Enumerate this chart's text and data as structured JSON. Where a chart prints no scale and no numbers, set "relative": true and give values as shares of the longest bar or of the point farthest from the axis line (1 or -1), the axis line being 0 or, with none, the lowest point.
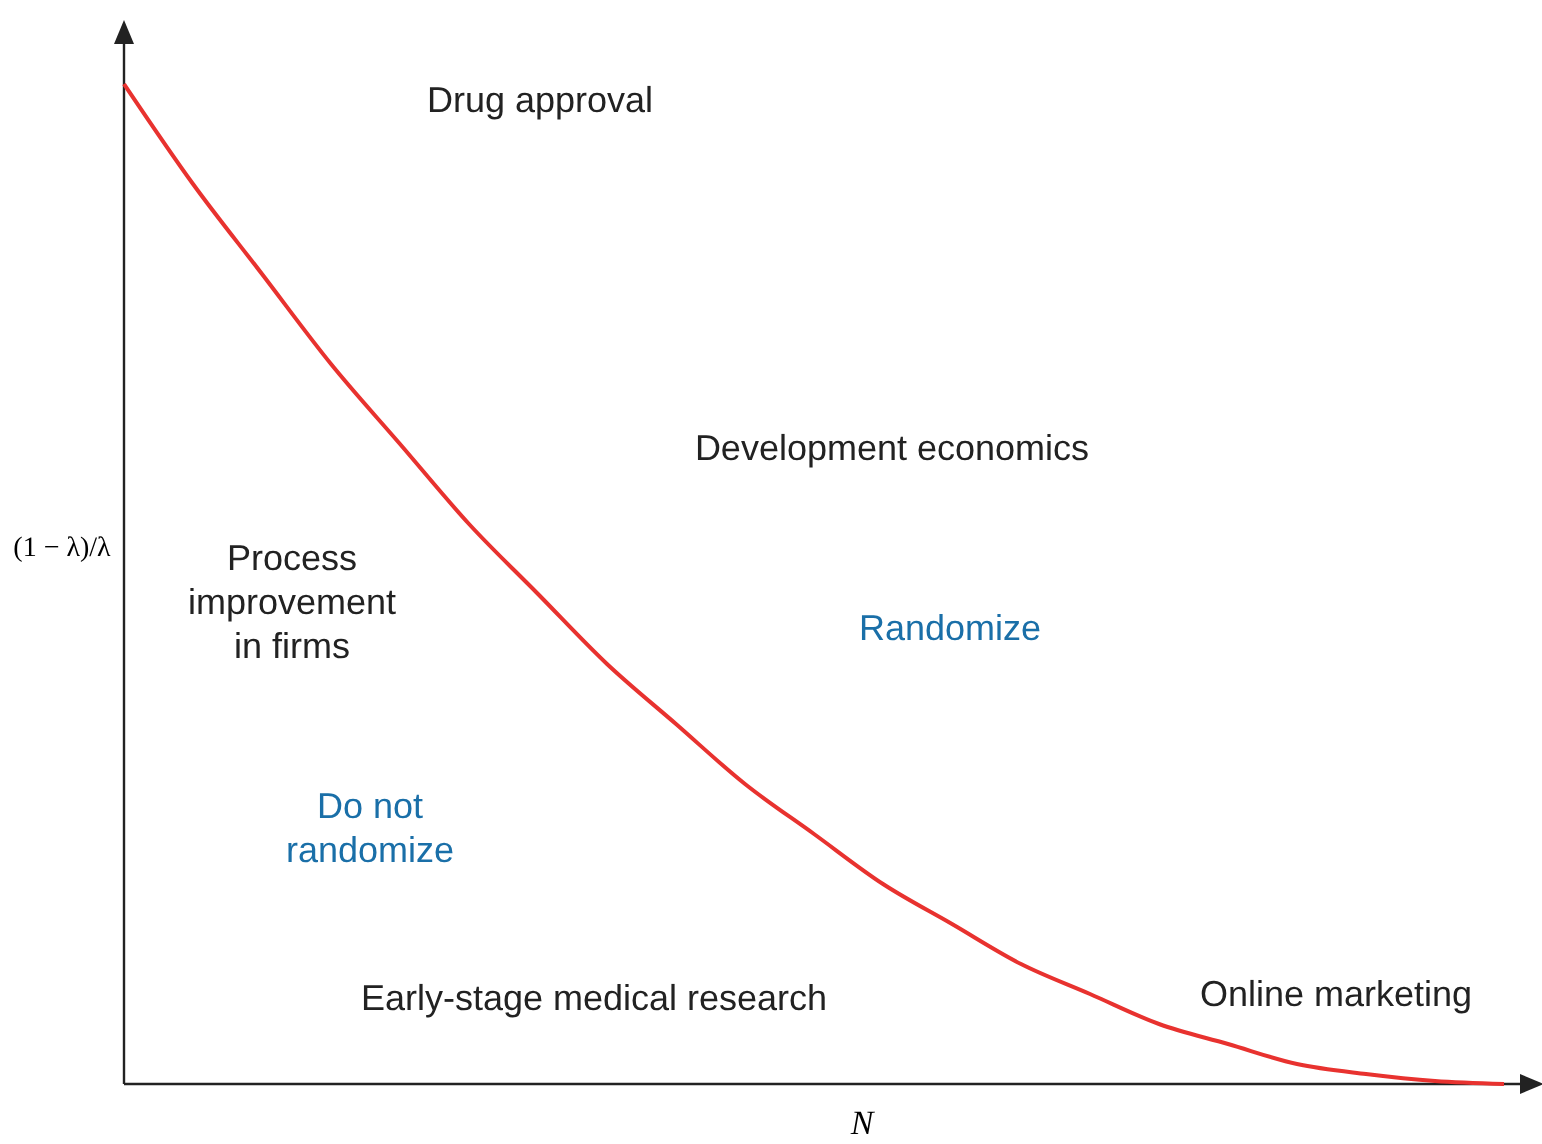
{
  "chart_data": {
    "type": "line",
    "relative": true,
    "xlabel": "N",
    "ylabel": "(1 − λ)/λ",
    "categories": [
      null,
      null,
      null,
      null,
      null,
      null,
      null,
      null,
      null,
      null,
      null,
      null,
      null,
      null,
      null,
      null,
      null,
      null,
      null,
      null,
      null
    ],
    "series": [
      {
        "color": "#e8322f",
        "values": [
          1,
          0.9,
          0.81,
          0.72,
          0.64,
          0.56,
          0.49,
          0.42,
          0.36,
          0.3,
          0.25,
          0.2,
          0.16,
          0.12,
          0.09,
          0.06,
          0.04,
          0.02,
          0.01,
          0.003,
          0
        ]
      }
    ],
    "annotations": [
      "Drug approval",
      "Development economics",
      "Process\nimprovement\nin firms",
      "Randomize",
      "Do not\nrandomize",
      "Early-stage medical research",
      "Online marketing"
    ]
  }
}
